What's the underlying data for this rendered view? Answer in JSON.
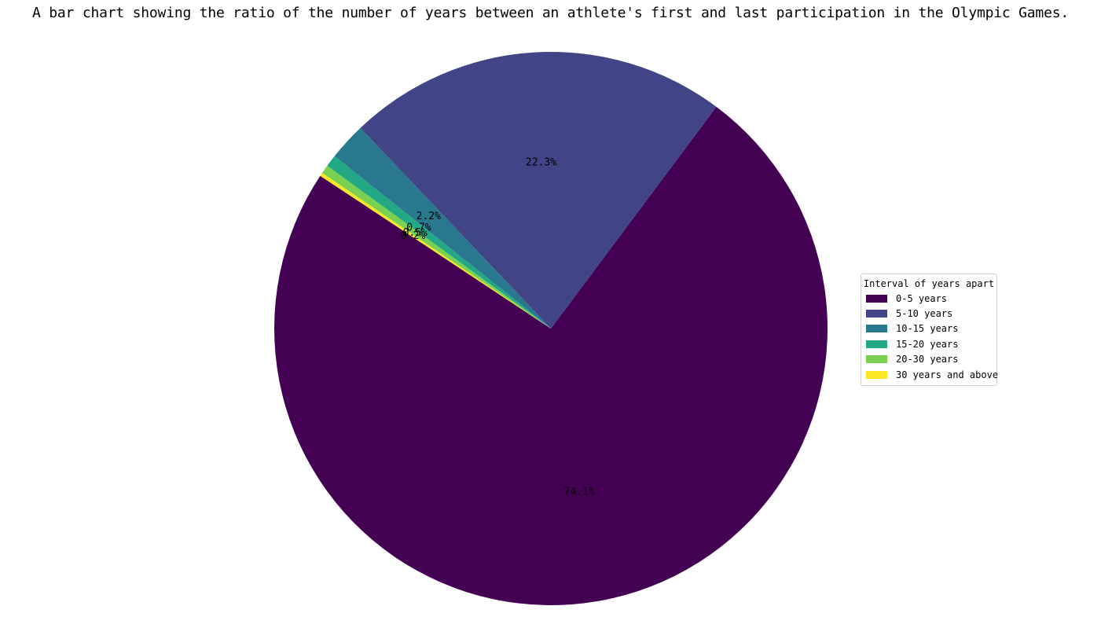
{
  "chart_data": {
    "type": "pie",
    "title": "A bar chart showing the ratio of the number of years between an athlete's first and last participation in the Olympic Games.",
    "categories": [
      "0-5 years",
      "5-10 years",
      "10-15 years",
      "15-20 years",
      "20-30 years",
      "30 years and above"
    ],
    "values": [
      74.1,
      22.3,
      2.2,
      0.7,
      0.5,
      0.2
    ],
    "value_labels": [
      "74.1%",
      "22.3%",
      "2.2%",
      "0.7%",
      "0.5%",
      "0.2%"
    ],
    "colors": [
      "#440154",
      "#414487",
      "#2a788e",
      "#22a884",
      "#7ad151",
      "#fde725"
    ],
    "start_angle_deg": 146.5,
    "direction": "counterclockwise",
    "legend": {
      "title": "Interval of years apart",
      "placement": "right"
    }
  }
}
